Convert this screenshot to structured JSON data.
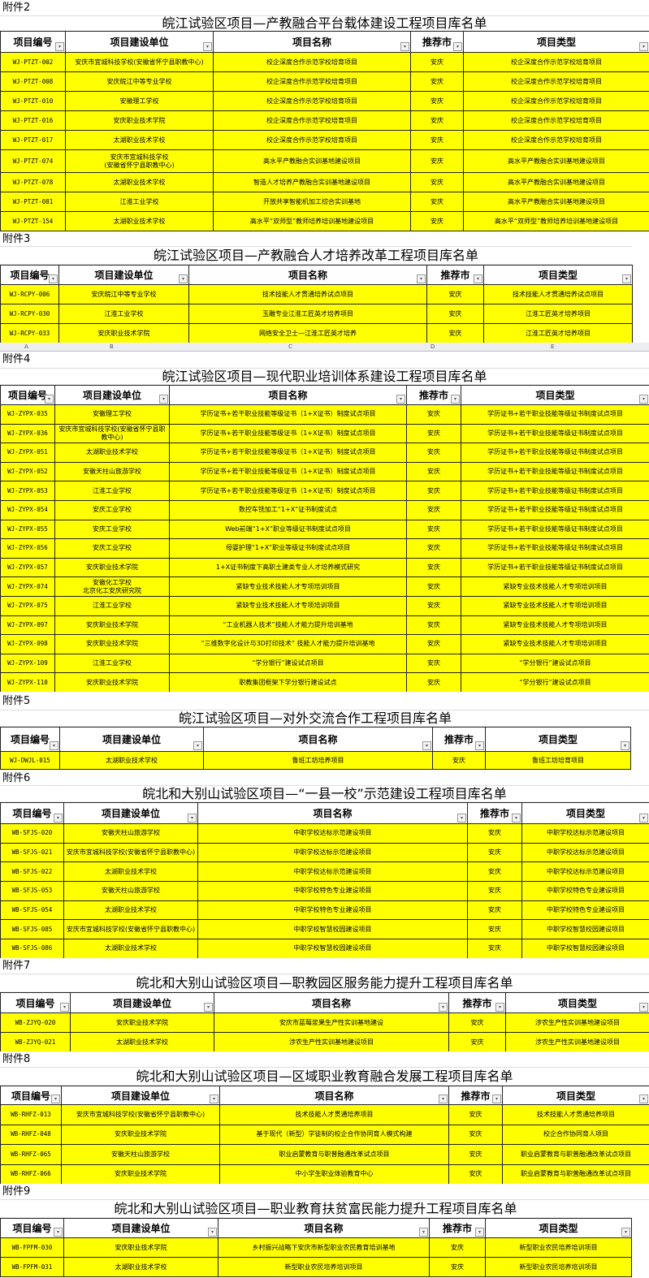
{
  "headers": [
    "项目编号",
    "项目建设单位",
    "项目名称",
    "推荐市",
    "项目类型"
  ],
  "column_letters": [
    "A",
    "B",
    "C",
    "D",
    "E"
  ],
  "sections": [
    {
      "label": "附件2",
      "title": "皖江试验区项目—产教融合平台载体建设工程项目库名单",
      "rows": [
        [
          "WJ-PTZT-002",
          "安庆市宜城科技学校(安徽省怀宁县职教中心)",
          "校企深度合作示范学校培育项目",
          "安庆",
          "校企深度合作示范学校培育项目"
        ],
        [
          "WJ-PTZT-008",
          "安庆皖江中等专业学校",
          "校企深度合作示范学校培育项目",
          "安庆",
          "校企深度合作示范学校培育项目"
        ],
        [
          "WJ-PTZT-010",
          "安徽理工学校",
          "校企深度合作示范学校培育项目",
          "安庆",
          "校企深度合作示范学校培育项目"
        ],
        [
          "WJ-PTZT-016",
          "安庆职业技术学院",
          "校企深度合作示范学校培育项目",
          "安庆",
          "校企深度合作示范学校培育项目"
        ],
        [
          "WJ-PTZT-017",
          "太湖职业技术学校",
          "校企深度合作示范学校培育项目",
          "安庆",
          "校企深度合作示范学校培育项目"
        ],
        [
          "WJ-PTZT-074",
          "安庆市宜城科技学校\n(安徽省怀宁县职教中心)",
          "高水平产教融合实训基地建设项目",
          "安庆",
          "高水平产教融合实训基地建设项目"
        ],
        [
          "WJ-PTZT-078",
          "太湖职业技术学校",
          "智造人才培养产教融合实训基地建设项目",
          "安庆",
          "高水平产教融合实训基地建设项目"
        ],
        [
          "WJ-PTZT-081",
          "江淮工业学校",
          "开放共享智能机加工综合实训基地",
          "安庆",
          "高水平产教融合实训基地建设项目"
        ],
        [
          "WJ-PTZT-154",
          "太湖职业技术学校",
          "高水平“双师型”教师培养培训基地建设项目",
          "安庆",
          "高水平“双师型”教师培养培训基地建设项目"
        ]
      ]
    },
    {
      "label": "附件3",
      "title": "皖江试验区项目—产教融合人才培养改革工程项目库名单",
      "rows": [
        [
          "WJ-RCPY-006",
          "安庆皖江中等专业学校",
          "技术技能人才贯通培养试点项目",
          "安庆",
          "技术技能人才贯通培养试点项目"
        ],
        [
          "WJ-RCPY-030",
          "江淮工业学校",
          "玉雕专业江淮工匠英才培养项目",
          "安庆",
          "江淮工匠英才培养项目"
        ],
        [
          "WJ-RCPY-033",
          "安庆职业技术学院",
          "网络安全卫士—江淮工匠英才培养",
          "安庆",
          "江淮工匠英才培养项目"
        ]
      ]
    },
    {
      "label": "附件4",
      "title": "皖江试验区项目—现代职业培训体系建设工程项目库名单",
      "rows": [
        [
          "WJ-ZYPX-035",
          "安徽理工学校",
          "学历证书+若干职业技能等级证书（1+X证书）制度试点项目",
          "安庆",
          "学历证书+若干职业技能等级证书制度试点项目"
        ],
        [
          "WJ-ZYPX-036",
          "安庆市宜城科技学校(安徽省怀宁县职教中心)",
          "学历证书+若干职业技能等级证书（1+X证书）制度试点项目",
          "安庆",
          "学历证书+若干职业技能等级证书制度试点项目"
        ],
        [
          "WJ-ZYPX-051",
          "太湖职业技术学校",
          "学历证书+若干职业技能等级证书（1+X证书）制度试点项目",
          "安庆",
          "学历证书+若干职业技能等级证书制度试点项目"
        ],
        [
          "WJ-ZYPX-052",
          "安徽天柱山旅游学校",
          "学历证书+若干职业技能等级证书（1+X证书）制度试点项目",
          "安庆",
          "学历证书+若干职业技能等级证书制度试点项目"
        ],
        [
          "WJ-ZYPX-053",
          "江淮工业学校",
          "学历证书+若干职业技能等级证书（1+X证书）制度试点项目",
          "安庆",
          "学历证书+若干职业技能等级证书制度试点项目"
        ],
        [
          "WJ-ZYPX-054",
          "安庆工业学校",
          "数控车铣加工“1+X”证书制度试点",
          "安庆",
          "学历证书+若干职业技能等级证书制度试点项目"
        ],
        [
          "WJ-ZYPX-055",
          "安庆工业学校",
          "Web前端“1+X”职业等级证书制度试点项目",
          "安庆",
          "学历证书+若干职业技能等级证书制度试点项目"
        ],
        [
          "WJ-ZYPX-056",
          "安庆工业学校",
          "母婴护理“1+X”职业等级证书制度试点项目",
          "安庆",
          "学历证书+若干职业技能等级证书制度试点项目"
        ],
        [
          "WJ-ZYPX-057",
          "安庆职业技术学院",
          "1+X证书制度下高职土建类专业人才培养模式研究",
          "安庆",
          "学历证书+若干职业技能等级证书制度试点项目"
        ],
        [
          "WJ-ZYPX-074",
          "安徽化工学校\n北京化工安庆研究院",
          "紧缺专业技术技能人才专项培训项目",
          "安庆",
          "紧缺专业技术技能人才专项培训项目"
        ],
        [
          "WJ-ZYPX-075",
          "江淮工业学校",
          "紧缺专业技术技能人才专项培训项目",
          "安庆",
          "紧缺专业技术技能人才专项培训项目"
        ],
        [
          "WJ-ZYPX-097",
          "安庆职业技术学院",
          "“工业机器人技术”技能人才能力提升培训基地",
          "安庆",
          "紧缺专业技术技能人才专项培训项目"
        ],
        [
          "WJ-ZYPX-098",
          "安庆职业技术学院",
          "“三维数字化设计与3D打印技术” 技能人才能力提升培训基地",
          "安庆",
          "紧缺专业技术技能人才专项培训项目"
        ],
        [
          "WJ-ZYPX-109",
          "江淮工业学校",
          "“学分银行”建设试点项目",
          "安庆",
          "“学分银行”建设试点项目"
        ],
        [
          "WJ-ZYPX-110",
          "安庆职业技术学院",
          "职教集团框架下学分银行建设试点",
          "安庆",
          "“学分银行”建设试点项目"
        ]
      ]
    },
    {
      "label": "附件5",
      "title": "皖江试验区项目—对外交流合作工程项目库名单",
      "rows": [
        [
          "WJ-DWJL-015",
          "太湖职业技术学校",
          "鲁班工坊培养项目",
          "安庆",
          "鲁班工坊培育项目"
        ]
      ]
    },
    {
      "label": "附件6",
      "title": "皖北和大别山试验区项目—“一县一校”示范建设工程项目库名单",
      "rows": [
        [
          "WB-SFJS-020",
          "安徽天柱山旅游学校",
          "中职学校达标示范建设项目",
          "安庆",
          "中职学校达标示范建设项目"
        ],
        [
          "WB-SFJS-021",
          "安庆市宜城科技学校(安徽省怀宁县职教中心)",
          "中职学校达标示范建设项目",
          "安庆",
          "中职学校达标示范建设项目"
        ],
        [
          "WB-SFJS-022",
          "太湖职业技术学校",
          "中职学校达标示范建设项目",
          "安庆",
          "中职学校达标示范建设项目"
        ],
        [
          "WB-SFJS-053",
          "安徽天柱山旅游学校",
          "中职学校特色专业建设项目",
          "安庆",
          "中职学校特色专业建设项目"
        ],
        [
          "WB-SFJS-054",
          "太湖职业技术学校",
          "中职学校特色专业建设项目",
          "安庆",
          "中职学校特色专业建设项目"
        ],
        [
          "WB-SFJS-085",
          "安庆市宜城科技学校(安徽省怀宁县职教中心)",
          "中职学校智慧校园建设项目",
          "安庆",
          "中职学校智慧校园建设项目"
        ],
        [
          "WB-SFJS-086",
          "太湖职业技术学校",
          "中职学校智慧校园建设项目",
          "安庆",
          "中职学校智慧校园建设项目"
        ]
      ]
    },
    {
      "label": "附件7",
      "title": "皖北和大别山试验区项目—职教园区服务能力提升工程项目库名单",
      "rows": [
        [
          "WB-ZJYQ-020",
          "安庆职业技术学院",
          "安庆市蓝莓浆果生产性实训基地建设",
          "安庆",
          "涉农生产性实训基地建设项目"
        ],
        [
          "WB-ZJYQ-021",
          "太湖职业技术学校",
          "涉农生产性实训基地建设项目",
          "安庆",
          "涉农生产性实训基地建设项目"
        ]
      ]
    },
    {
      "label": "附件8",
      "title": "皖北和大别山试验区项目—区域职业教育融合发展工程项目库名单",
      "rows": [
        [
          "WB-RHFZ-013",
          "安庆市宜城科技学校(安徽省怀宁县职教中心)",
          "技术技能人才贯通培养项目",
          "安庆",
          "技术技能人才贯通培养项目"
        ],
        [
          "WB-RHFZ-048",
          "安庆职业技术学院",
          "基于现代（新型）学徒制的校企合作协同育人模式构建",
          "安庆",
          "校企合作协同育人项目"
        ],
        [
          "WB-RHFZ-065",
          "安徽天柱山旅游学校",
          "职业启蒙教育与职普融通改革试点项目",
          "安庆",
          "职业启蒙教育与职普融通改革试点项目"
        ],
        [
          "WB-RHFZ-066",
          "安庆职业技术学院",
          "中小学生职业体验教育中心",
          "安庆",
          "职业启蒙教育与职普融通改革试点项目"
        ]
      ]
    },
    {
      "label": "附件9",
      "title": "皖北和大别山试验区项目—职业教育扶贫富民能力提升工程项目库名单",
      "rows": [
        [
          "WB-FPFM-030",
          "安庆职业技术学院",
          "乡村振兴战略下安庆市新型职业农民教育培训基地",
          "安庆",
          "新型职业农民培养培训项目"
        ],
        [
          "WB-FPFM-031",
          "太湖职业技术学校",
          "新型职业农民培养培训项目",
          "安庆",
          "新型职业农民培养培训项目"
        ]
      ]
    }
  ]
}
